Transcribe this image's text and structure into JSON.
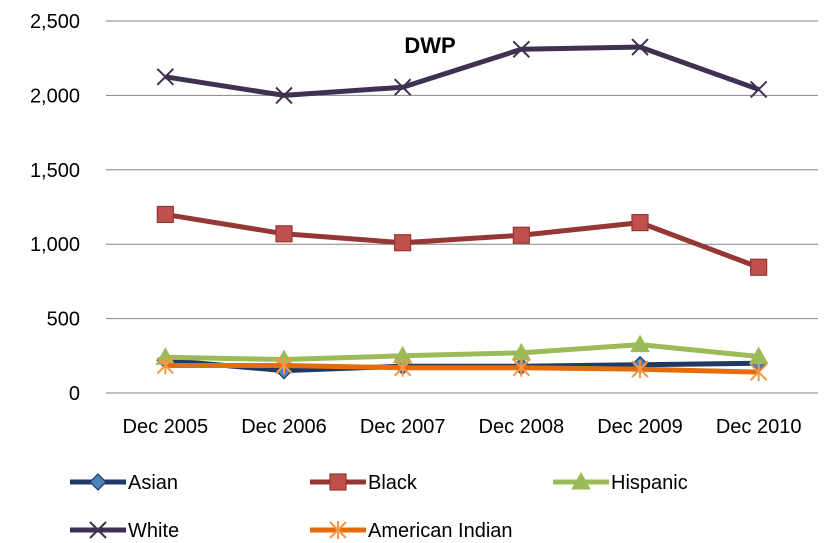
{
  "chart_data": {
    "type": "line",
    "title": "DWP",
    "categories": [
      "Dec 2005",
      "Dec 2006",
      "Dec 2007",
      "Dec 2008",
      "Dec 2009",
      "Dec 2010"
    ],
    "ylim": [
      0,
      2500
    ],
    "yticks": [
      "0",
      "500",
      "1,000",
      "1,500",
      "2,000",
      "2,500"
    ],
    "grid": true,
    "legend": "bottom",
    "series": [
      {
        "name": "Asian",
        "color": "#1f3864",
        "marker": "diamond",
        "marker_color": "#4f81bd",
        "values": [
          220,
          150,
          180,
          180,
          190,
          200
        ]
      },
      {
        "name": "Black",
        "color": "#953735",
        "marker": "square",
        "marker_color": "#c0504d",
        "values": [
          1200,
          1070,
          1010,
          1060,
          1145,
          845
        ]
      },
      {
        "name": "Hispanic",
        "color": "#9bbb59",
        "marker": "triangle",
        "marker_color": "#9bbb59",
        "values": [
          240,
          225,
          250,
          270,
          325,
          245
        ]
      },
      {
        "name": "White",
        "color": "#3f3151",
        "marker": "x",
        "marker_color": "#3f3151",
        "values": [
          2125,
          2000,
          2055,
          2310,
          2325,
          2040
        ]
      },
      {
        "name": "American Indian",
        "color": "#e46c0a",
        "marker": "star",
        "marker_color": "#f79646",
        "values": [
          185,
          185,
          170,
          170,
          160,
          140
        ]
      }
    ]
  }
}
